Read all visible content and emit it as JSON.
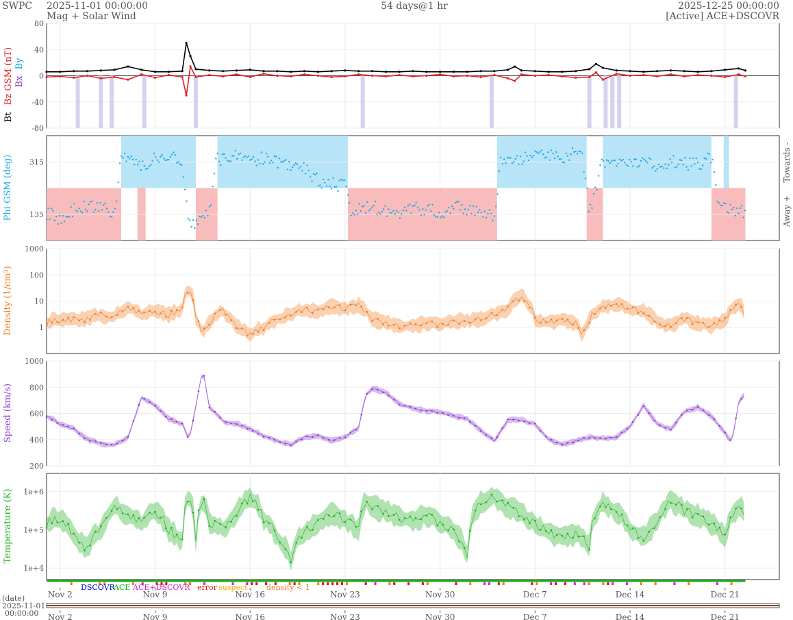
{
  "header": {
    "brand": "SWPC",
    "start": "2025-11-01 00:00:00",
    "subtitle": "Mag + Solar Wind",
    "span": "54 days@1 hr",
    "end": "2025-12-25 00:00:00",
    "source": "[Active] ACE+DSCOVR"
  },
  "colors": {
    "bt": "#000000",
    "bz": "#e02020",
    "by": "#1ea0dc",
    "bx": "#8040c0",
    "phi": "#1ea8e8",
    "density": "#f07a20",
    "speed": "#9040d0",
    "temp": "#20b020",
    "towards_fill": "#b8e4f8",
    "away_fill": "#f8bcbc",
    "bz_south_fill": "#d8d0f0",
    "dscovr": "#0000d0",
    "ace": "#20b020",
    "acedscovr": "#e020c0",
    "error": "#e01010",
    "suspect": "#f0b000",
    "density_lt1": "#f07a20"
  },
  "x_axis": {
    "ticks": [
      "Nov 2",
      "Nov 9",
      "Nov 16",
      "Nov 23",
      "Nov 30",
      "Dec 7",
      "Dec 14",
      "Dec 21"
    ],
    "tick_days": [
      1,
      8,
      15,
      22,
      29,
      36,
      43,
      50
    ],
    "date_label": "(date)",
    "start_date": "2025-11-01",
    "start_time": "00:00:00",
    "total_days": 54,
    "data_end_day": 51.5
  },
  "status_legend": {
    "dscovr": "DSCOVR",
    "ace": "ACE",
    "acedscovr": "ACE+DSCOVR",
    "error": "error",
    "suspect": "suspect",
    "density_lt1": "density < 1"
  },
  "chart_data": [
    {
      "type": "line",
      "panel": "mag",
      "ylabel_parts": [
        "Bt",
        "Bz GSM (nT)",
        "Bx",
        "By"
      ],
      "yticks": [
        "80",
        "40",
        "0",
        "-40",
        "-80"
      ],
      "ylim": [
        -80,
        80
      ],
      "series": [
        {
          "name": "Bt",
          "x": [
            0,
            1,
            2,
            3,
            4,
            5,
            6,
            7,
            8,
            9,
            10,
            10.3,
            10.6,
            11,
            12,
            13,
            14,
            15,
            16,
            17,
            18,
            19,
            20,
            21,
            22,
            23,
            24,
            25,
            26,
            27,
            28,
            29,
            30,
            31,
            32,
            33,
            34,
            34.5,
            35,
            36,
            37,
            38,
            39,
            40,
            40.5,
            41,
            42,
            43,
            44,
            45,
            46,
            47,
            48,
            49,
            50,
            51,
            51.5
          ],
          "y": [
            6,
            6,
            7,
            7,
            8,
            9,
            14,
            9,
            6,
            6,
            7,
            50,
            30,
            10,
            8,
            7,
            8,
            9,
            7,
            7,
            6,
            7,
            6,
            7,
            8,
            7,
            7,
            6,
            6,
            7,
            6,
            6,
            6,
            6,
            7,
            7,
            9,
            14,
            8,
            7,
            6,
            6,
            7,
            10,
            18,
            12,
            8,
            7,
            6,
            7,
            8,
            7,
            6,
            7,
            9,
            11,
            8
          ]
        },
        {
          "name": "Bz",
          "x": [
            0,
            1,
            2,
            3,
            4,
            5,
            6,
            7,
            8,
            9,
            10,
            10.3,
            10.6,
            11,
            12,
            13,
            14,
            15,
            16,
            17,
            18,
            19,
            20,
            21,
            22,
            23,
            24,
            25,
            26,
            27,
            28,
            29,
            30,
            31,
            32,
            33,
            34,
            34.5,
            35,
            36,
            37,
            38,
            39,
            40,
            40.5,
            41,
            42,
            43,
            44,
            45,
            46,
            47,
            48,
            49,
            50,
            51,
            51.5
          ],
          "y": [
            -2,
            -1,
            -3,
            0,
            -4,
            -2,
            -6,
            2,
            -3,
            1,
            -2,
            -30,
            14,
            -2,
            1,
            -1,
            2,
            -2,
            3,
            0,
            -1,
            2,
            0,
            -2,
            -1,
            2,
            0,
            -1,
            1,
            -1,
            0,
            2,
            -1,
            0,
            -2,
            1,
            -4,
            -8,
            2,
            0,
            1,
            -1,
            -3,
            -2,
            5,
            -6,
            3,
            0,
            1,
            -1,
            2,
            -1,
            1,
            0,
            -2,
            2,
            -1
          ]
        },
        {
          "name": "Bz south",
          "x": [
            2.3,
            4.0,
            4.8,
            7.2,
            11.0,
            23.3,
            32.8,
            40.0,
            41.2,
            41.7,
            42.2,
            50.8
          ],
          "y": [
            -1,
            -1,
            -1,
            -1,
            -1,
            -1,
            -1,
            -1,
            -1,
            -1,
            -1,
            -1
          ]
        }
      ]
    },
    {
      "type": "scatter",
      "panel": "phi",
      "ylabel": "Phi GSM (deg)",
      "yticks": [
        "315",
        "135"
      ],
      "ylim": [
        45,
        405
      ],
      "side_labels": [
        "Towards -",
        "Away +"
      ],
      "towards_intervals": [
        [
          5.5,
          11.0
        ],
        [
          12.6,
          22.2
        ],
        [
          33.2,
          39.8
        ],
        [
          41.0,
          49.0
        ],
        [
          49.9,
          50.3
        ]
      ],
      "away_intervals": [
        [
          0,
          5.5
        ],
        [
          6.7,
          7.3
        ],
        [
          11.0,
          12.6
        ],
        [
          22.2,
          33.2
        ],
        [
          39.8,
          41.0
        ],
        [
          49.0,
          51.5
        ]
      ],
      "series": [
        {
          "name": "Phi",
          "x": [
            0,
            1,
            2,
            3,
            4,
            5,
            5.5,
            6,
            7,
            8,
            9,
            10,
            10.5,
            11,
            12,
            12.5,
            13,
            14,
            15,
            16,
            17,
            18,
            19,
            20,
            21,
            22,
            22.5,
            23,
            24,
            25,
            26,
            27,
            28,
            29,
            30,
            31,
            32,
            33,
            33.5,
            34,
            35,
            36,
            37,
            38,
            39,
            39.5,
            40,
            41,
            42,
            43,
            44,
            45,
            46,
            47,
            48,
            49,
            49.5,
            50,
            51,
            51.5
          ],
          "y": [
            140,
            120,
            150,
            160,
            155,
            140,
            330,
            320,
            300,
            330,
            340,
            300,
            120,
            100,
            140,
            330,
            320,
            340,
            320,
            330,
            310,
            300,
            290,
            250,
            240,
            230,
            140,
            150,
            160,
            150,
            140,
            160,
            150,
            140,
            160,
            150,
            140,
            130,
            320,
            330,
            325,
            335,
            340,
            330,
            345,
            335,
            140,
            320,
            305,
            310,
            315,
            300,
            320,
            310,
            305,
            330,
            160,
            150,
            140,
            145
          ]
        }
      ]
    },
    {
      "type": "line",
      "panel": "density",
      "ylabel": "Density (1/cm³)",
      "yticks": [
        "1000",
        "100",
        "10",
        "1"
      ],
      "scale": "log",
      "ylim": [
        0.1,
        1000
      ],
      "series": [
        {
          "name": "Density",
          "x": [
            0,
            1,
            2,
            3,
            4,
            5,
            6,
            7,
            8,
            9,
            10,
            10.5,
            11,
            11.5,
            12,
            13,
            14,
            15,
            16,
            17,
            18,
            19,
            20,
            21,
            22,
            23,
            24,
            25,
            26,
            27,
            28,
            29,
            30,
            31,
            32,
            33,
            34,
            35,
            36,
            37,
            38,
            39,
            39.5,
            40,
            41,
            42,
            43,
            44,
            45,
            46,
            47,
            48,
            49,
            50,
            51,
            51.5
          ],
          "y": [
            1.5,
            2,
            1.8,
            2,
            3,
            2.5,
            6,
            3,
            4,
            3,
            5,
            30,
            2,
            0.5,
            1.5,
            4,
            1,
            0.5,
            1,
            2,
            3,
            5,
            4,
            6,
            5,
            7,
            2,
            1.5,
            1,
            1.2,
            1.5,
            1.3,
            1.6,
            1.8,
            2,
            3,
            5,
            15,
            2,
            1.5,
            1.8,
            1.5,
            0.3,
            2,
            6,
            8,
            5,
            4,
            1.5,
            1.2,
            2,
            1.5,
            1.2,
            1.8,
            8,
            3
          ]
        }
      ]
    },
    {
      "type": "line",
      "panel": "speed",
      "ylabel": "Speed (km/s)",
      "yticks": [
        "1000",
        "800",
        "600",
        "400",
        "200"
      ],
      "ylim": [
        200,
        1000
      ],
      "series": [
        {
          "name": "Speed",
          "x": [
            0,
            1,
            2,
            3,
            4,
            5,
            6,
            7,
            8,
            9,
            10,
            10.5,
            11,
            11.5,
            12,
            13,
            14,
            15,
            16,
            17,
            18,
            19,
            20,
            21,
            22,
            23,
            23.5,
            24,
            25,
            26,
            27,
            28,
            29,
            30,
            31,
            32,
            33,
            34,
            35,
            36,
            37,
            38,
            39,
            40,
            41,
            42,
            43,
            44,
            45,
            46,
            47,
            48,
            49,
            50,
            50.5,
            51,
            51.5
          ],
          "y": [
            580,
            520,
            480,
            400,
            370,
            360,
            420,
            720,
            660,
            560,
            520,
            400,
            650,
            940,
            650,
            540,
            520,
            480,
            430,
            390,
            360,
            420,
            430,
            390,
            420,
            490,
            740,
            790,
            760,
            670,
            640,
            620,
            610,
            580,
            560,
            470,
            390,
            550,
            550,
            520,
            400,
            360,
            390,
            420,
            410,
            420,
            500,
            660,
            520,
            480,
            610,
            650,
            580,
            450,
            380,
            680,
            760
          ]
        }
      ]
    },
    {
      "type": "line",
      "panel": "temperature",
      "ylabel": "Temperature (K)",
      "yticks": [
        "1e+6",
        "1e+5",
        "1e+4"
      ],
      "scale": "log",
      "ylim": [
        5000,
        3000000
      ],
      "series": [
        {
          "name": "Temperature",
          "x": [
            0,
            1,
            2,
            3,
            4,
            5,
            6,
            7,
            8,
            9,
            10,
            10.5,
            11,
            11.5,
            12,
            13,
            14,
            15,
            16,
            17,
            18,
            19,
            20,
            21,
            22,
            23,
            23.5,
            24,
            25,
            26,
            27,
            28,
            29,
            30,
            31,
            32,
            33,
            34,
            35,
            36,
            37,
            38,
            39,
            40,
            41,
            42,
            43,
            44,
            45,
            46,
            47,
            48,
            49,
            50,
            51,
            51.5
          ],
          "y": [
            150000,
            200000,
            60000,
            30000,
            100000,
            400000,
            250000,
            150000,
            300000,
            100000,
            50000,
            800000,
            40000,
            600000,
            150000,
            100000,
            250000,
            700000,
            200000,
            60000,
            15000,
            90000,
            150000,
            250000,
            180000,
            100000,
            600000,
            400000,
            300000,
            200000,
            180000,
            250000,
            150000,
            90000,
            20000,
            500000,
            700000,
            400000,
            250000,
            150000,
            80000,
            60000,
            80000,
            40000,
            500000,
            300000,
            100000,
            60000,
            150000,
            600000,
            300000,
            250000,
            150000,
            60000,
            400000,
            300000
          ]
        }
      ]
    }
  ]
}
